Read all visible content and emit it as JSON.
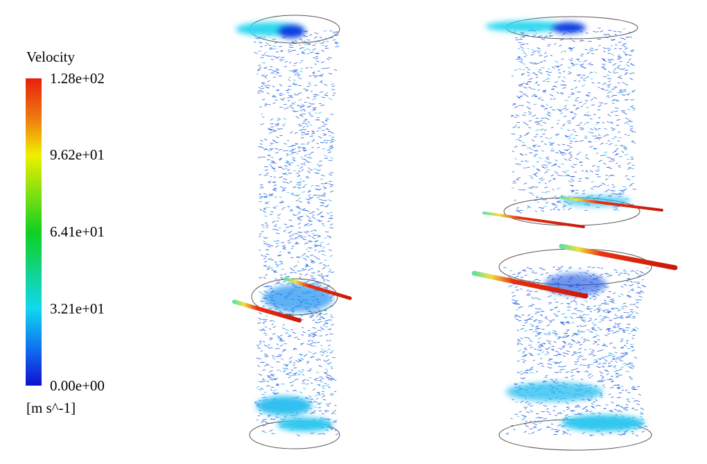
{
  "legend": {
    "title": "Velocity",
    "ticks": [
      "1.28e+02",
      "9.62e+01",
      "6.41e+01",
      "3.21e+01",
      "0.00e+00"
    ],
    "unit": "[m s^-1]"
  }
}
